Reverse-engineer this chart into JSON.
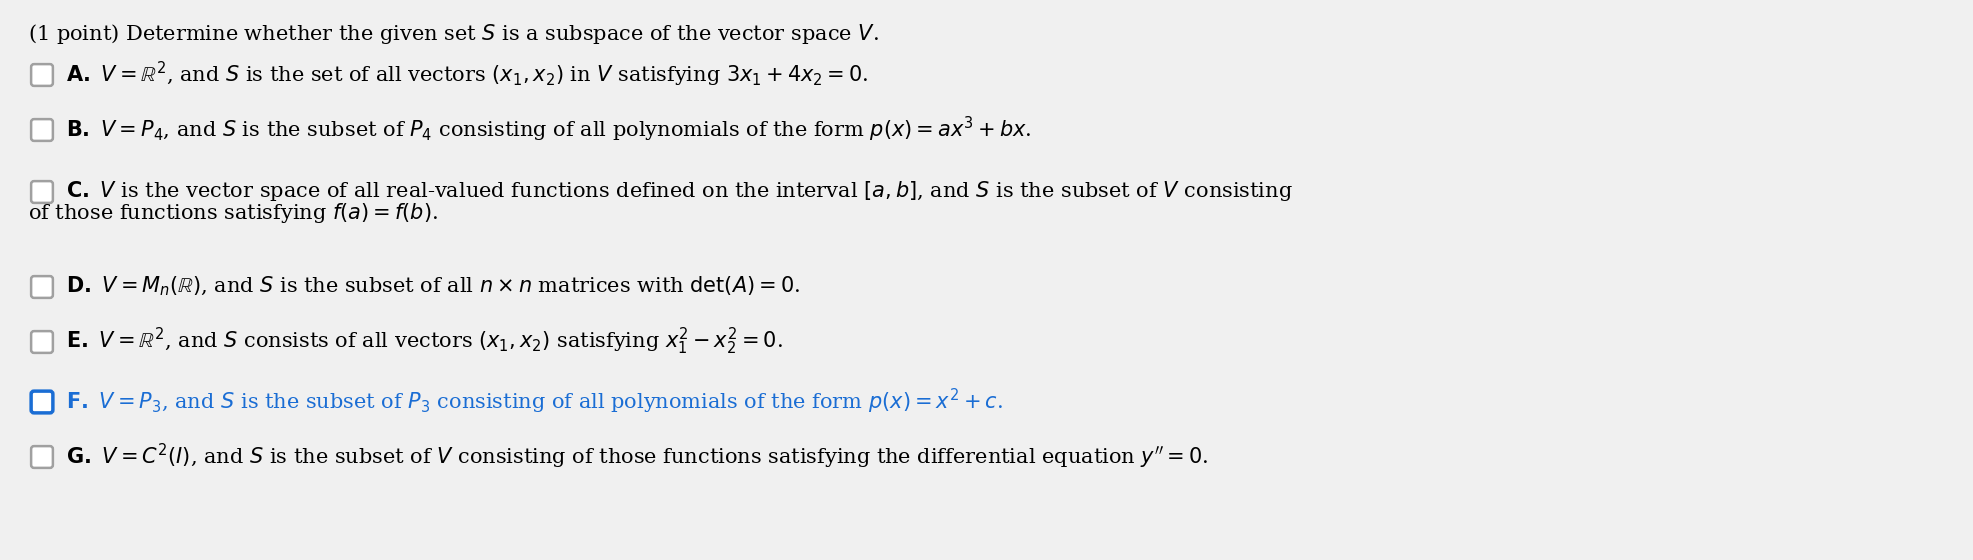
{
  "background_color": "#f0f0f0",
  "text_area_color": "#ffffff",
  "title_text": "(1 point) Determine whether the given set $S$ is a subspace of the vector space $V$.",
  "options": [
    {
      "label": "A",
      "checked": false,
      "highlight": false,
      "line1": "$\\mathbf{A.}$ $V = \\mathbb{R}^{2}$, and $S$ is the set of all vectors $(x_1, x_2)$ in $V$ satisfying $3x_1 + 4x_2 = 0$.",
      "line2": null
    },
    {
      "label": "B",
      "checked": false,
      "highlight": false,
      "line1": "$\\mathbf{B.}$ $V = P_4$, and $S$ is the subset of $P_4$ consisting of all polynomials of the form $p(x) = ax^3 + bx$.",
      "line2": null
    },
    {
      "label": "C",
      "checked": false,
      "highlight": false,
      "line1": "$\\mathbf{C.}$ $V$ is the vector space of all real-valued functions defined on the interval $[a, b]$, and $S$ is the subset of $V$ consisting",
      "line2": "of those functions satisfying $f(a) = f(b)$."
    },
    {
      "label": "D",
      "checked": false,
      "highlight": false,
      "line1": "$\\mathbf{D.}$ $V = M_n(\\mathbb{R})$, and $S$ is the subset of all $n \\times n$ matrices with $\\det(A) = 0$.",
      "line2": null
    },
    {
      "label": "E",
      "checked": false,
      "highlight": false,
      "line1": "$\\mathbf{E.}$ $V = \\mathbb{R}^{2}$, and $S$ consists of all vectors $(x_1, x_2)$ satisfying $x_1^2 - x_2^2 = 0$.",
      "line2": null
    },
    {
      "label": "F",
      "checked": true,
      "highlight": true,
      "line1": "$\\mathbf{F.}$ $V = P_3$, and $S$ is the subset of $P_3$ consisting of all polynomials of the form $p(x) = x^2 + c$.",
      "line2": null
    },
    {
      "label": "G",
      "checked": false,
      "highlight": false,
      "line1": "$\\mathbf{G.}$ $V = C^2(I)$, and $S$ is the subset of $V$ consisting of those functions satisfying the differential equation $y'' = 0$.",
      "line2": null
    }
  ],
  "title_fontsize": 15,
  "option_fontsize": 15,
  "highlight_color": "#1a6dd4",
  "normal_color": "#000000",
  "checkbox_color": "#a0a0a0",
  "highlight_box_color": "#1a6dd4"
}
